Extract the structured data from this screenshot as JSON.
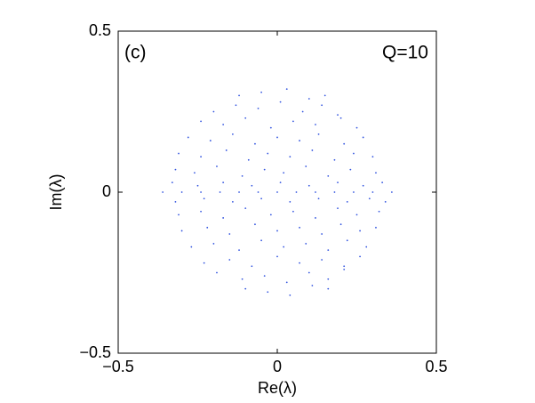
{
  "chart_data": {
    "type": "scatter",
    "xlabel": "Re(λ)",
    "ylabel": "Im(λ)",
    "annotations": [
      "(c)",
      "Q=10"
    ],
    "color": "#3355e0",
    "xlim": [
      -0.5,
      0.5
    ],
    "ylim": [
      -0.5,
      0.5
    ],
    "xticks": [
      {
        "value": -0.5,
        "label": "−0.5"
      },
      0,
      0.5
    ],
    "yticks": [
      {
        "value": -0.5,
        "label": "−0.5"
      },
      0,
      0.5
    ],
    "x": [
      -0.12,
      -0.05,
      0.03,
      0.1,
      0.15,
      -0.2,
      -0.13,
      -0.06,
      0.01,
      0.08,
      0.14,
      0.19,
      -0.24,
      -0.17,
      -0.1,
      -0.02,
      0.05,
      0.12,
      0.2,
      0.25,
      -0.28,
      -0.21,
      -0.14,
      -0.07,
      0.0,
      0.07,
      0.13,
      0.21,
      0.27,
      -0.31,
      -0.24,
      -0.16,
      -0.09,
      -0.03,
      0.04,
      0.11,
      0.18,
      0.24,
      0.3,
      -0.32,
      -0.26,
      -0.19,
      -0.11,
      -0.04,
      0.02,
      0.09,
      0.16,
      0.23,
      0.31,
      -0.33,
      -0.25,
      -0.17,
      -0.08,
      0.01,
      0.1,
      0.19,
      0.27,
      0.33,
      -0.36,
      -0.3,
      -0.24,
      -0.18,
      -0.12,
      -0.06,
      0,
      0.06,
      0.12,
      0.18,
      0.24,
      0.3,
      0.36,
      -0.32,
      -0.23,
      -0.14,
      -0.05,
      0.04,
      0.13,
      0.22,
      0.29,
      0.34,
      -0.31,
      -0.24,
      -0.17,
      -0.1,
      -0.02,
      0.05,
      0.12,
      0.19,
      0.25,
      0.32,
      -0.3,
      -0.22,
      -0.15,
      -0.07,
      0.0,
      0.07,
      0.14,
      0.2,
      0.26,
      0.31,
      -0.27,
      -0.2,
      -0.12,
      -0.05,
      0.02,
      0.09,
      0.16,
      0.22,
      0.28,
      -0.23,
      -0.15,
      -0.08,
      0.0,
      0.07,
      0.14,
      0.21,
      0.26,
      -0.19,
      -0.11,
      -0.04,
      0.03,
      0.1,
      0.16,
      0.21,
      -0.1,
      -0.03,
      0.04,
      0.11,
      0.16
    ],
    "values": [
      0.3,
      0.31,
      0.32,
      0.29,
      0.3,
      0.25,
      0.27,
      0.26,
      0.28,
      0.25,
      0.27,
      0.24,
      0.22,
      0.21,
      0.23,
      0.2,
      0.22,
      0.21,
      0.23,
      0.2,
      0.17,
      0.16,
      0.18,
      0.15,
      0.17,
      0.16,
      0.18,
      0.15,
      0.17,
      0.12,
      0.11,
      0.13,
      0.1,
      0.12,
      0.11,
      0.13,
      0.1,
      0.12,
      0.11,
      0.07,
      0.06,
      0.08,
      0.05,
      0.07,
      0.06,
      0.08,
      0.05,
      0.07,
      0.06,
      0.03,
      0.02,
      0.03,
      0.02,
      0.03,
      0.02,
      0.03,
      0.02,
      0.03,
      0,
      0,
      0,
      0,
      0,
      0,
      0,
      0,
      0,
      0,
      0,
      0,
      0,
      -0.03,
      -0.02,
      -0.03,
      -0.02,
      -0.03,
      -0.02,
      -0.03,
      -0.02,
      -0.03,
      -0.07,
      -0.06,
      -0.08,
      -0.05,
      -0.07,
      -0.06,
      -0.08,
      -0.05,
      -0.07,
      -0.06,
      -0.12,
      -0.11,
      -0.13,
      -0.1,
      -0.12,
      -0.11,
      -0.13,
      -0.1,
      -0.12,
      -0.11,
      -0.17,
      -0.16,
      -0.18,
      -0.15,
      -0.17,
      -0.16,
      -0.18,
      -0.15,
      -0.17,
      -0.22,
      -0.21,
      -0.23,
      -0.2,
      -0.22,
      -0.21,
      -0.23,
      -0.2,
      -0.25,
      -0.27,
      -0.26,
      -0.28,
      -0.25,
      -0.27,
      -0.24,
      -0.3,
      -0.31,
      -0.32,
      -0.29,
      -0.3
    ]
  }
}
